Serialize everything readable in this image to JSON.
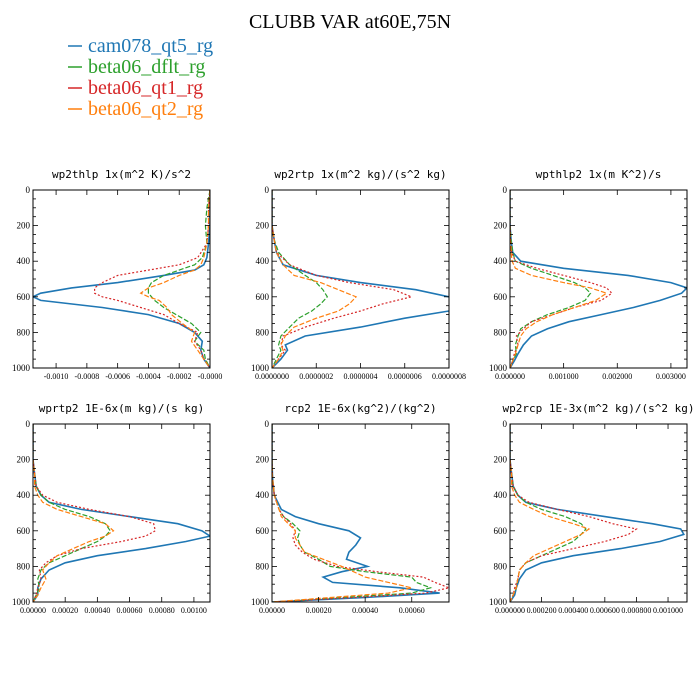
{
  "title": "CLUBB VAR at60E,75N",
  "legend": [
    {
      "name": "cam078_qt5_rg",
      "color": "#1f77b4"
    },
    {
      "name": "beta06_dflt_rg",
      "color": "#2ca02c"
    },
    {
      "name": "beta06_qt1_rg",
      "color": "#d62728"
    },
    {
      "name": "beta06_qt2_rg",
      "color": "#ff7f0e"
    }
  ],
  "chart_data": [
    {
      "type": "line",
      "title": "wp2thlp  1x(m^2 K)/s^2",
      "xlim": [
        -0.00115,
        0.0
      ],
      "ylim": [
        1000,
        0
      ],
      "yticks": [
        "0",
        "200",
        "400",
        "600",
        "800",
        "1000"
      ],
      "xticks": [
        {
          "v": -0.001,
          "label": "-0.0010"
        },
        {
          "v": -0.0008,
          "label": "-0.0008"
        },
        {
          "v": -0.0006,
          "label": "-0.0006"
        },
        {
          "v": -0.0004,
          "label": "-0.0004"
        },
        {
          "v": -0.0002,
          "label": "-0.0002"
        },
        {
          "v": 0.0,
          "label": "-0.0000"
        }
      ],
      "y": [
        0,
        100,
        200,
        300,
        380,
        420,
        450,
        480,
        520,
        550,
        580,
        600,
        620,
        660,
        700,
        750,
        800,
        850,
        900,
        950,
        1000
      ],
      "series": [
        {
          "name": "cam078_qt5_rg",
          "values": [
            0,
            0,
            0,
            -1e-05,
            -2e-05,
            -4e-05,
            -0.0001,
            -0.0003,
            -0.0006,
            -0.0009,
            -0.0011,
            -0.00115,
            -0.0011,
            -0.0007,
            -0.0004,
            -0.0002,
            -0.0001,
            -5e-05,
            -6e-05,
            -4e-05,
            0
          ]
        },
        {
          "name": "beta06_dflt_rg",
          "values": [
            0,
            -2e-05,
            -3e-05,
            -2e-05,
            -5e-05,
            -0.0001,
            -0.0002,
            -0.0003,
            -0.00038,
            -0.0004,
            -0.0004,
            -0.00038,
            -0.00036,
            -0.0003,
            -0.00022,
            -0.00012,
            -6e-05,
            -0.0001,
            -4e-05,
            -3e-05,
            0
          ]
        },
        {
          "name": "beta06_qt1_rg",
          "values": [
            0,
            -1e-05,
            -1e-05,
            -2e-05,
            -8e-05,
            -0.0002,
            -0.0004,
            -0.0006,
            -0.0007,
            -0.00075,
            -0.00075,
            -0.0007,
            -0.0006,
            -0.00045,
            -0.0003,
            -0.0002,
            -8e-05,
            -0.0001,
            -6e-05,
            -4e-05,
            0
          ]
        },
        {
          "name": "beta06_qt2_rg",
          "values": [
            0,
            -1e-05,
            -1e-05,
            -2e-05,
            -4e-05,
            -6e-05,
            -0.0001,
            -0.0002,
            -0.0003,
            -0.0004,
            -0.00045,
            -0.0004,
            -0.00033,
            -0.00028,
            -0.00025,
            -0.00018,
            -0.0001,
            -0.00012,
            -8e-05,
            -4e-05,
            0
          ]
        }
      ]
    },
    {
      "type": "line",
      "title": "wp2rtp  1x(m^2 kg)/(s^2 kg)",
      "xlim": [
        0,
        8e-07
      ],
      "ylim": [
        1000,
        0
      ],
      "yticks": [
        "0",
        "200",
        "400",
        "600",
        "800",
        "1000"
      ],
      "xticks": [
        {
          "v": 0,
          "label": "0.0000000"
        },
        {
          "v": 2e-07,
          "label": "0.0000002"
        },
        {
          "v": 4e-07,
          "label": "0.0000004"
        },
        {
          "v": 6e-07,
          "label": "0.0000006"
        },
        {
          "v": 8e-07,
          "label": "0.0000008"
        }
      ],
      "y": [
        0,
        100,
        200,
        280,
        350,
        420,
        480,
        520,
        560,
        600,
        640,
        680,
        720,
        770,
        820,
        870,
        900,
        950,
        1000
      ],
      "series": [
        {
          "name": "cam078_qt5_rg",
          "values": [
            0,
            0,
            0,
            1e-08,
            2e-08,
            5e-08,
            2e-07,
            4e-07,
            6.5e-07,
            8e-07,
            8.2e-07,
            8e-07,
            6e-07,
            4e-07,
            1.5e-07,
            6e-08,
            7e-08,
            4e-08,
            0
          ]
        },
        {
          "name": "beta06_dflt_rg",
          "values": [
            0,
            0,
            0,
            1e-08,
            3e-08,
            8e-08,
            1.5e-07,
            2e-07,
            2.3e-07,
            2.5e-07,
            2.2e-07,
            1.8e-07,
            1.2e-07,
            8e-08,
            4e-08,
            3e-08,
            4e-08,
            2e-08,
            0
          ]
        },
        {
          "name": "beta06_qt1_rg",
          "values": [
            0,
            0,
            0,
            1e-08,
            2e-08,
            8e-08,
            2e-07,
            3.5e-07,
            5.5e-07,
            6.3e-07,
            5e-07,
            4e-07,
            2.8e-07,
            1.5e-07,
            5e-08,
            4e-08,
            6e-08,
            3e-08,
            0
          ]
        },
        {
          "name": "beta06_qt2_rg",
          "values": [
            0,
            0,
            0,
            1e-08,
            2e-08,
            5e-08,
            1e-07,
            2.2e-07,
            3e-07,
            3.8e-07,
            3.5e-07,
            3e-07,
            2e-07,
            1e-07,
            6e-08,
            4e-08,
            5e-08,
            3e-08,
            0
          ]
        }
      ]
    },
    {
      "type": "line",
      "title": "wpthlp2  1x(m K^2)/s",
      "xlim": [
        0,
        0.0033
      ],
      "ylim": [
        1000,
        0
      ],
      "yticks": [
        "0",
        "200",
        "400",
        "600",
        "800",
        "1000"
      ],
      "xticks": [
        {
          "v": 0,
          "label": "0.000000"
        },
        {
          "v": 0.001,
          "label": "0.001000"
        },
        {
          "v": 0.002,
          "label": "0.002000"
        },
        {
          "v": 0.003,
          "label": "0.003000"
        }
      ],
      "y": [
        0,
        100,
        200,
        280,
        350,
        400,
        440,
        480,
        520,
        550,
        580,
        620,
        660,
        700,
        740,
        780,
        820,
        870,
        920,
        960,
        1000
      ],
      "series": [
        {
          "name": "cam078_qt5_rg",
          "values": [
            0,
            0,
            0,
            2e-05,
            5e-05,
            0.0002,
            0.001,
            0.0022,
            0.003,
            0.0033,
            0.0032,
            0.0028,
            0.0023,
            0.0017,
            0.0011,
            0.0007,
            0.0004,
            0.00025,
            0.00015,
            8e-05,
            0
          ]
        },
        {
          "name": "beta06_dflt_rg",
          "values": [
            0,
            0,
            0,
            2e-05,
            5e-05,
            0.0001,
            0.0004,
            0.0008,
            0.0012,
            0.0014,
            0.0015,
            0.0014,
            0.0011,
            0.0007,
            0.0004,
            0.0002,
            0.00015,
            0.0001,
            0.00012,
            5e-05,
            0
          ]
        },
        {
          "name": "beta06_qt1_rg",
          "values": [
            0,
            0,
            0,
            1e-05,
            3e-05,
            0.0001,
            0.0005,
            0.001,
            0.0015,
            0.0018,
            0.0019,
            0.0017,
            0.0012,
            0.0008,
            0.0004,
            0.00025,
            0.00012,
            0.00015,
            8e-05,
            5e-05,
            0
          ]
        },
        {
          "name": "beta06_qt2_rg",
          "values": [
            0,
            0,
            0,
            1e-05,
            2e-05,
            4e-05,
            0.0001,
            0.0004,
            0.001,
            0.0015,
            0.0018,
            0.0016,
            0.0012,
            0.0008,
            0.0005,
            0.0003,
            0.0002,
            0.00015,
            0.0001,
            5e-05,
            0
          ]
        }
      ]
    },
    {
      "type": "line",
      "title": "wprtp2  1E-6x(m kg)/(s kg)",
      "xlim": [
        0,
        0.0011
      ],
      "ylim": [
        1000,
        0
      ],
      "yticks": [
        "0",
        "200",
        "400",
        "600",
        "800",
        "1000"
      ],
      "xticks": [
        {
          "v": 0,
          "label": "0.00000"
        },
        {
          "v": 0.0002,
          "label": "0.00020"
        },
        {
          "v": 0.0004,
          "label": "0.00040"
        },
        {
          "v": 0.0006,
          "label": "0.00060"
        },
        {
          "v": 0.0008,
          "label": "0.00080"
        },
        {
          "v": 0.001,
          "label": "0.00100"
        }
      ],
      "y": [
        0,
        100,
        200,
        280,
        350,
        400,
        440,
        480,
        520,
        560,
        600,
        630,
        660,
        700,
        740,
        780,
        820,
        870,
        920,
        960,
        1000
      ],
      "series": [
        {
          "name": "cam078_qt5_rg",
          "values": [
            0,
            0,
            0,
            1e-05,
            2e-05,
            5e-05,
            0.0001,
            0.0003,
            0.0006,
            0.0009,
            0.00105,
            0.0011,
            0.00095,
            0.0007,
            0.0004,
            0.0002,
            0.0001,
            5e-05,
            3e-05,
            3e-05,
            0
          ]
        },
        {
          "name": "beta06_dflt_rg",
          "values": [
            0,
            0,
            0,
            1e-05,
            2e-05,
            5e-05,
            0.0001,
            0.0002,
            0.00035,
            0.00045,
            0.00048,
            0.00045,
            0.0004,
            0.0003,
            0.0002,
            0.0001,
            5e-05,
            3e-05,
            4e-05,
            2e-05,
            0
          ]
        },
        {
          "name": "beta06_qt1_rg",
          "values": [
            0,
            0,
            0,
            1e-05,
            2e-05,
            6e-05,
            0.00015,
            0.00035,
            0.0006,
            0.00075,
            0.00076,
            0.0007,
            0.00055,
            0.0003,
            0.00015,
            8e-05,
            4e-05,
            5e-05,
            3e-05,
            2e-05,
            0
          ]
        },
        {
          "name": "beta06_qt2_rg",
          "values": [
            0,
            0,
            0,
            1e-05,
            1e-05,
            3e-05,
            6e-05,
            0.00015,
            0.0003,
            0.00045,
            0.0005,
            0.00045,
            0.00035,
            0.00025,
            0.00015,
            0.0001,
            6e-05,
            8e-05,
            5e-05,
            3e-05,
            0
          ]
        }
      ]
    },
    {
      "type": "line",
      "title": "rcp2  1E-6x(kg^2)/(kg^2)",
      "xlim": [
        0,
        0.00076
      ],
      "ylim": [
        1000,
        0
      ],
      "yticks": [
        "0",
        "200",
        "400",
        "600",
        "800",
        "1000"
      ],
      "xticks": [
        {
          "v": 0,
          "label": "0.00000"
        },
        {
          "v": 0.0002,
          "label": "0.00020"
        },
        {
          "v": 0.0004,
          "label": "0.00040"
        },
        {
          "v": 0.0006,
          "label": "0.00060"
        }
      ],
      "y": [
        0,
        200,
        300,
        400,
        480,
        520,
        560,
        600,
        640,
        680,
        720,
        760,
        800,
        830,
        860,
        890,
        920,
        950,
        975,
        1000
      ],
      "series": [
        {
          "name": "cam078_qt5_rg",
          "values": [
            0,
            0,
            2e-06,
            1e-05,
            4e-05,
            0.0001,
            0.0002,
            0.00033,
            0.00038,
            0.00036,
            0.00033,
            0.00032,
            0.00041,
            0.0003,
            0.00022,
            0.00026,
            0.00055,
            0.00072,
            0.0004,
            0
          ]
        },
        {
          "name": "beta06_dflt_rg",
          "values": [
            0,
            0,
            2e-06,
            1e-05,
            3e-05,
            5e-05,
            9e-05,
            0.00012,
            0.00011,
            0.00012,
            0.00014,
            0.0002,
            0.00025,
            0.0004,
            0.0006,
            0.00062,
            0.00068,
            0.0006,
            0.0003,
            0
          ]
        },
        {
          "name": "beta06_qt1_rg",
          "values": [
            0,
            0,
            2e-06,
            1e-05,
            3e-05,
            5e-05,
            8e-05,
            0.0001,
            9e-05,
            0.0001,
            0.00013,
            0.00018,
            0.00028,
            0.00045,
            0.00065,
            0.0007,
            0.00076,
            0.00066,
            0.00035,
            0
          ]
        },
        {
          "name": "beta06_qt2_rg",
          "values": [
            0,
            0,
            2e-06,
            1e-05,
            3e-05,
            4e-05,
            7e-05,
            0.0001,
            0.0001,
            0.00012,
            0.00014,
            0.00022,
            0.0003,
            0.00035,
            0.0004,
            0.0005,
            0.0006,
            0.0005,
            0.00025,
            0
          ]
        }
      ]
    },
    {
      "type": "line",
      "title": "wp2rcp  1E-3x(m^2 kg)/(s^2 kg)",
      "xlim": [
        0,
        0.00112
      ],
      "ylim": [
        1000,
        0
      ],
      "yticks": [
        "0",
        "200",
        "400",
        "600",
        "800",
        "1000"
      ],
      "xticks": [
        {
          "v": 0,
          "label": "0.000000"
        },
        {
          "v": 0.0002,
          "label": "0.000200"
        },
        {
          "v": 0.0004,
          "label": "0.000400"
        },
        {
          "v": 0.0006,
          "label": "0.000600"
        },
        {
          "v": 0.0008,
          "label": "0.000800"
        },
        {
          "v": 0.001,
          "label": "0.001000"
        }
      ],
      "y": [
        0,
        100,
        200,
        280,
        350,
        400,
        440,
        480,
        520,
        560,
        590,
        620,
        660,
        700,
        740,
        780,
        820,
        870,
        920,
        960,
        1000
      ],
      "series": [
        {
          "name": "cam078_qt5_rg",
          "values": [
            0,
            0,
            0,
            1e-05,
            2e-05,
            5e-05,
            0.0001,
            0.0003,
            0.0006,
            0.0009,
            0.00108,
            0.0011,
            0.00095,
            0.0007,
            0.0004,
            0.0002,
            0.0001,
            6e-05,
            4e-05,
            3e-05,
            0
          ]
        },
        {
          "name": "beta06_dflt_rg",
          "values": [
            0,
            0,
            0,
            1e-05,
            2e-05,
            5e-05,
            0.0001,
            0.0002,
            0.00035,
            0.00045,
            0.00048,
            0.00045,
            0.0004,
            0.0003,
            0.0002,
            0.0001,
            6e-05,
            5e-05,
            4e-05,
            2e-05,
            0
          ]
        },
        {
          "name": "beta06_qt1_rg",
          "values": [
            0,
            0,
            0,
            1e-05,
            2e-05,
            5e-05,
            0.00012,
            0.0003,
            0.0005,
            0.00065,
            0.0008,
            0.00075,
            0.0006,
            0.0004,
            0.0002,
            0.0001,
            6e-05,
            5e-05,
            3e-05,
            2e-05,
            0
          ]
        },
        {
          "name": "beta06_qt2_rg",
          "values": [
            0,
            0,
            0,
            1e-05,
            1e-05,
            3e-05,
            6e-05,
            0.00015,
            0.00025,
            0.0004,
            0.0005,
            0.00045,
            0.00035,
            0.00025,
            0.00015,
            0.0001,
            6e-05,
            5e-05,
            4e-05,
            2e-05,
            0
          ]
        }
      ]
    }
  ]
}
